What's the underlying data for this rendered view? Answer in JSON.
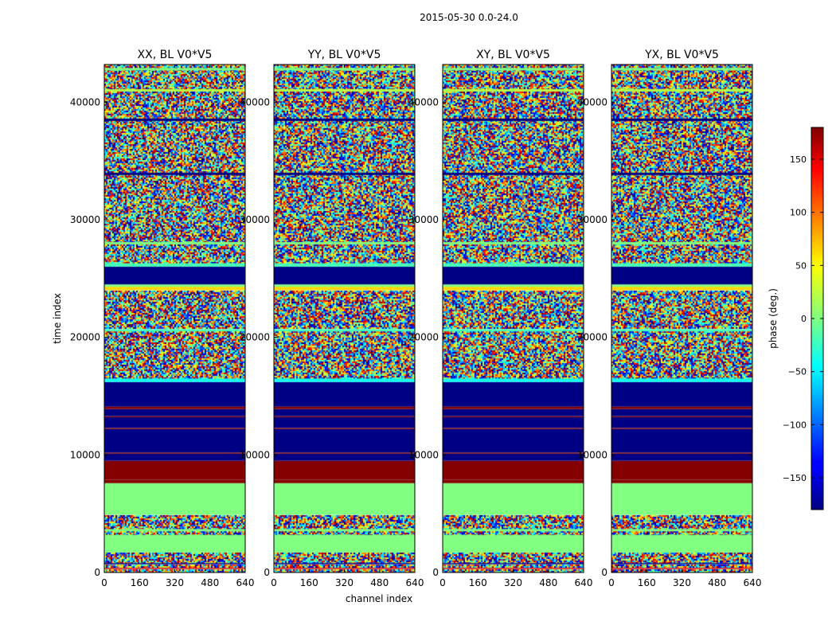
{
  "figure": {
    "suptitle": "2015-05-30 0.0-24.0",
    "xlabel": "channel index",
    "ylabel": "time index"
  },
  "colorbar": {
    "label": "phase (deg.)",
    "range": [
      -180,
      180
    ],
    "ticks": [
      150,
      100,
      50,
      0,
      -50,
      -100,
      -150
    ],
    "tick_labels": [
      "150",
      "100",
      "50",
      "0",
      "−50",
      "−100",
      "−150"
    ],
    "colormap": "jet"
  },
  "chart_data": {
    "type": "heatmap",
    "colormap": "jet",
    "value_range": [
      -180,
      180
    ],
    "xlim": [
      0,
      640
    ],
    "ylim": [
      0,
      43200
    ],
    "x_ticks": [
      0,
      160,
      320,
      480,
      640
    ],
    "x_tick_labels": [
      "0",
      "160",
      "320",
      "480",
      "640"
    ],
    "y_ticks": [
      0,
      10000,
      20000,
      30000,
      40000
    ],
    "y_tick_labels": [
      "0",
      "10000",
      "20000",
      "30000",
      "40000"
    ],
    "panels": [
      {
        "title": "XX, BL V0*V5"
      },
      {
        "title": "YY, BL V0*V5"
      },
      {
        "title": "XY, BL V0*V5"
      },
      {
        "title": "YX, BL V0*V5"
      }
    ],
    "time_bands": [
      {
        "from": 0,
        "to": 300,
        "kind": "noise"
      },
      {
        "from": 300,
        "to": 400,
        "kind": "solid",
        "phase": 150
      },
      {
        "from": 400,
        "to": 700,
        "kind": "noise"
      },
      {
        "from": 700,
        "to": 800,
        "kind": "solid",
        "phase": -175
      },
      {
        "from": 800,
        "to": 1700,
        "kind": "noise"
      },
      {
        "from": 1700,
        "to": 3200,
        "kind": "solid",
        "phase": 0
      },
      {
        "from": 3200,
        "to": 3500,
        "kind": "noise"
      },
      {
        "from": 3500,
        "to": 3700,
        "kind": "solid",
        "phase": 0
      },
      {
        "from": 3700,
        "to": 4900,
        "kind": "noise"
      },
      {
        "from": 4900,
        "to": 7600,
        "kind": "solid",
        "phase": 0
      },
      {
        "from": 7600,
        "to": 7900,
        "kind": "solid",
        "phase": 178
      },
      {
        "from": 7900,
        "to": 9500,
        "kind": "solid",
        "phase": 178
      },
      {
        "from": 9500,
        "to": 10100,
        "kind": "solid",
        "phase": -178
      },
      {
        "from": 10100,
        "to": 10200,
        "kind": "solid",
        "phase": 178
      },
      {
        "from": 10200,
        "to": 12200,
        "kind": "solid",
        "phase": -178
      },
      {
        "from": 12200,
        "to": 12300,
        "kind": "solid",
        "phase": 178
      },
      {
        "from": 12300,
        "to": 13200,
        "kind": "solid",
        "phase": -178
      },
      {
        "from": 13200,
        "to": 13300,
        "kind": "solid",
        "phase": 178
      },
      {
        "from": 13300,
        "to": 13900,
        "kind": "solid",
        "phase": -178
      },
      {
        "from": 13900,
        "to": 14100,
        "kind": "solid",
        "phase": 178
      },
      {
        "from": 14100,
        "to": 16200,
        "kind": "solid",
        "phase": -178
      },
      {
        "from": 16200,
        "to": 16500,
        "kind": "solid",
        "phase": -40
      },
      {
        "from": 16500,
        "to": 20500,
        "kind": "noise"
      },
      {
        "from": 20500,
        "to": 20700,
        "kind": "solid",
        "phase": -20
      },
      {
        "from": 20700,
        "to": 21000,
        "kind": "noise"
      },
      {
        "from": 21000,
        "to": 24000,
        "kind": "noise"
      },
      {
        "from": 24000,
        "to": 24300,
        "kind": "solid",
        "phase": 60
      },
      {
        "from": 24300,
        "to": 24500,
        "kind": "solid",
        "phase": 0
      },
      {
        "from": 24500,
        "to": 26000,
        "kind": "solid",
        "phase": -178
      },
      {
        "from": 26000,
        "to": 26300,
        "kind": "solid",
        "phase": -20
      },
      {
        "from": 26300,
        "to": 43200,
        "kind": "noise"
      },
      {
        "from": 27900,
        "to": 28100,
        "kind": "solid",
        "phase": 0
      },
      {
        "from": 33800,
        "to": 34000,
        "kind": "solid",
        "phase": -178
      },
      {
        "from": 38400,
        "to": 38600,
        "kind": "solid",
        "phase": -178
      },
      {
        "from": 40900,
        "to": 41100,
        "kind": "solid",
        "phase": 20
      },
      {
        "from": 42700,
        "to": 42900,
        "kind": "solid",
        "phase": 0
      }
    ]
  }
}
